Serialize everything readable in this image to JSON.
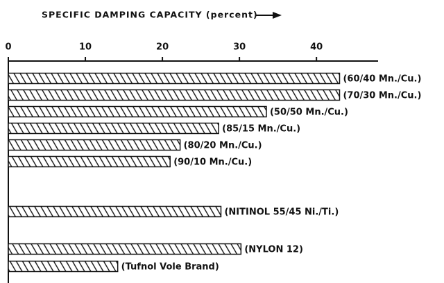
{
  "chart_data": {
    "type": "bar",
    "orientation": "horizontal",
    "title": "SPECIFIC DAMPING CAPACITY (percent)",
    "categories": [
      "(60/40 Mn./Cu.)",
      "(70/30 Mn./Cu.)",
      "(50/50 Mn./Cu.)",
      "(85/15 Mn./Cu.)",
      "(80/20 Mn./Cu.)",
      "(90/10 Mn./Cu.)",
      "(NITINOL 55/45 Ni./Ti.)",
      "(NYLON 12)",
      "(Tufnol Vole Brand)"
    ],
    "values": [
      43,
      43,
      33.5,
      27.3,
      22.3,
      21,
      27.6,
      30.2,
      14.2
    ],
    "color": "#111111",
    "xlim": [
      0,
      48
    ],
    "xticks": [
      0,
      10,
      20,
      30,
      40
    ],
    "grid": false
  }
}
